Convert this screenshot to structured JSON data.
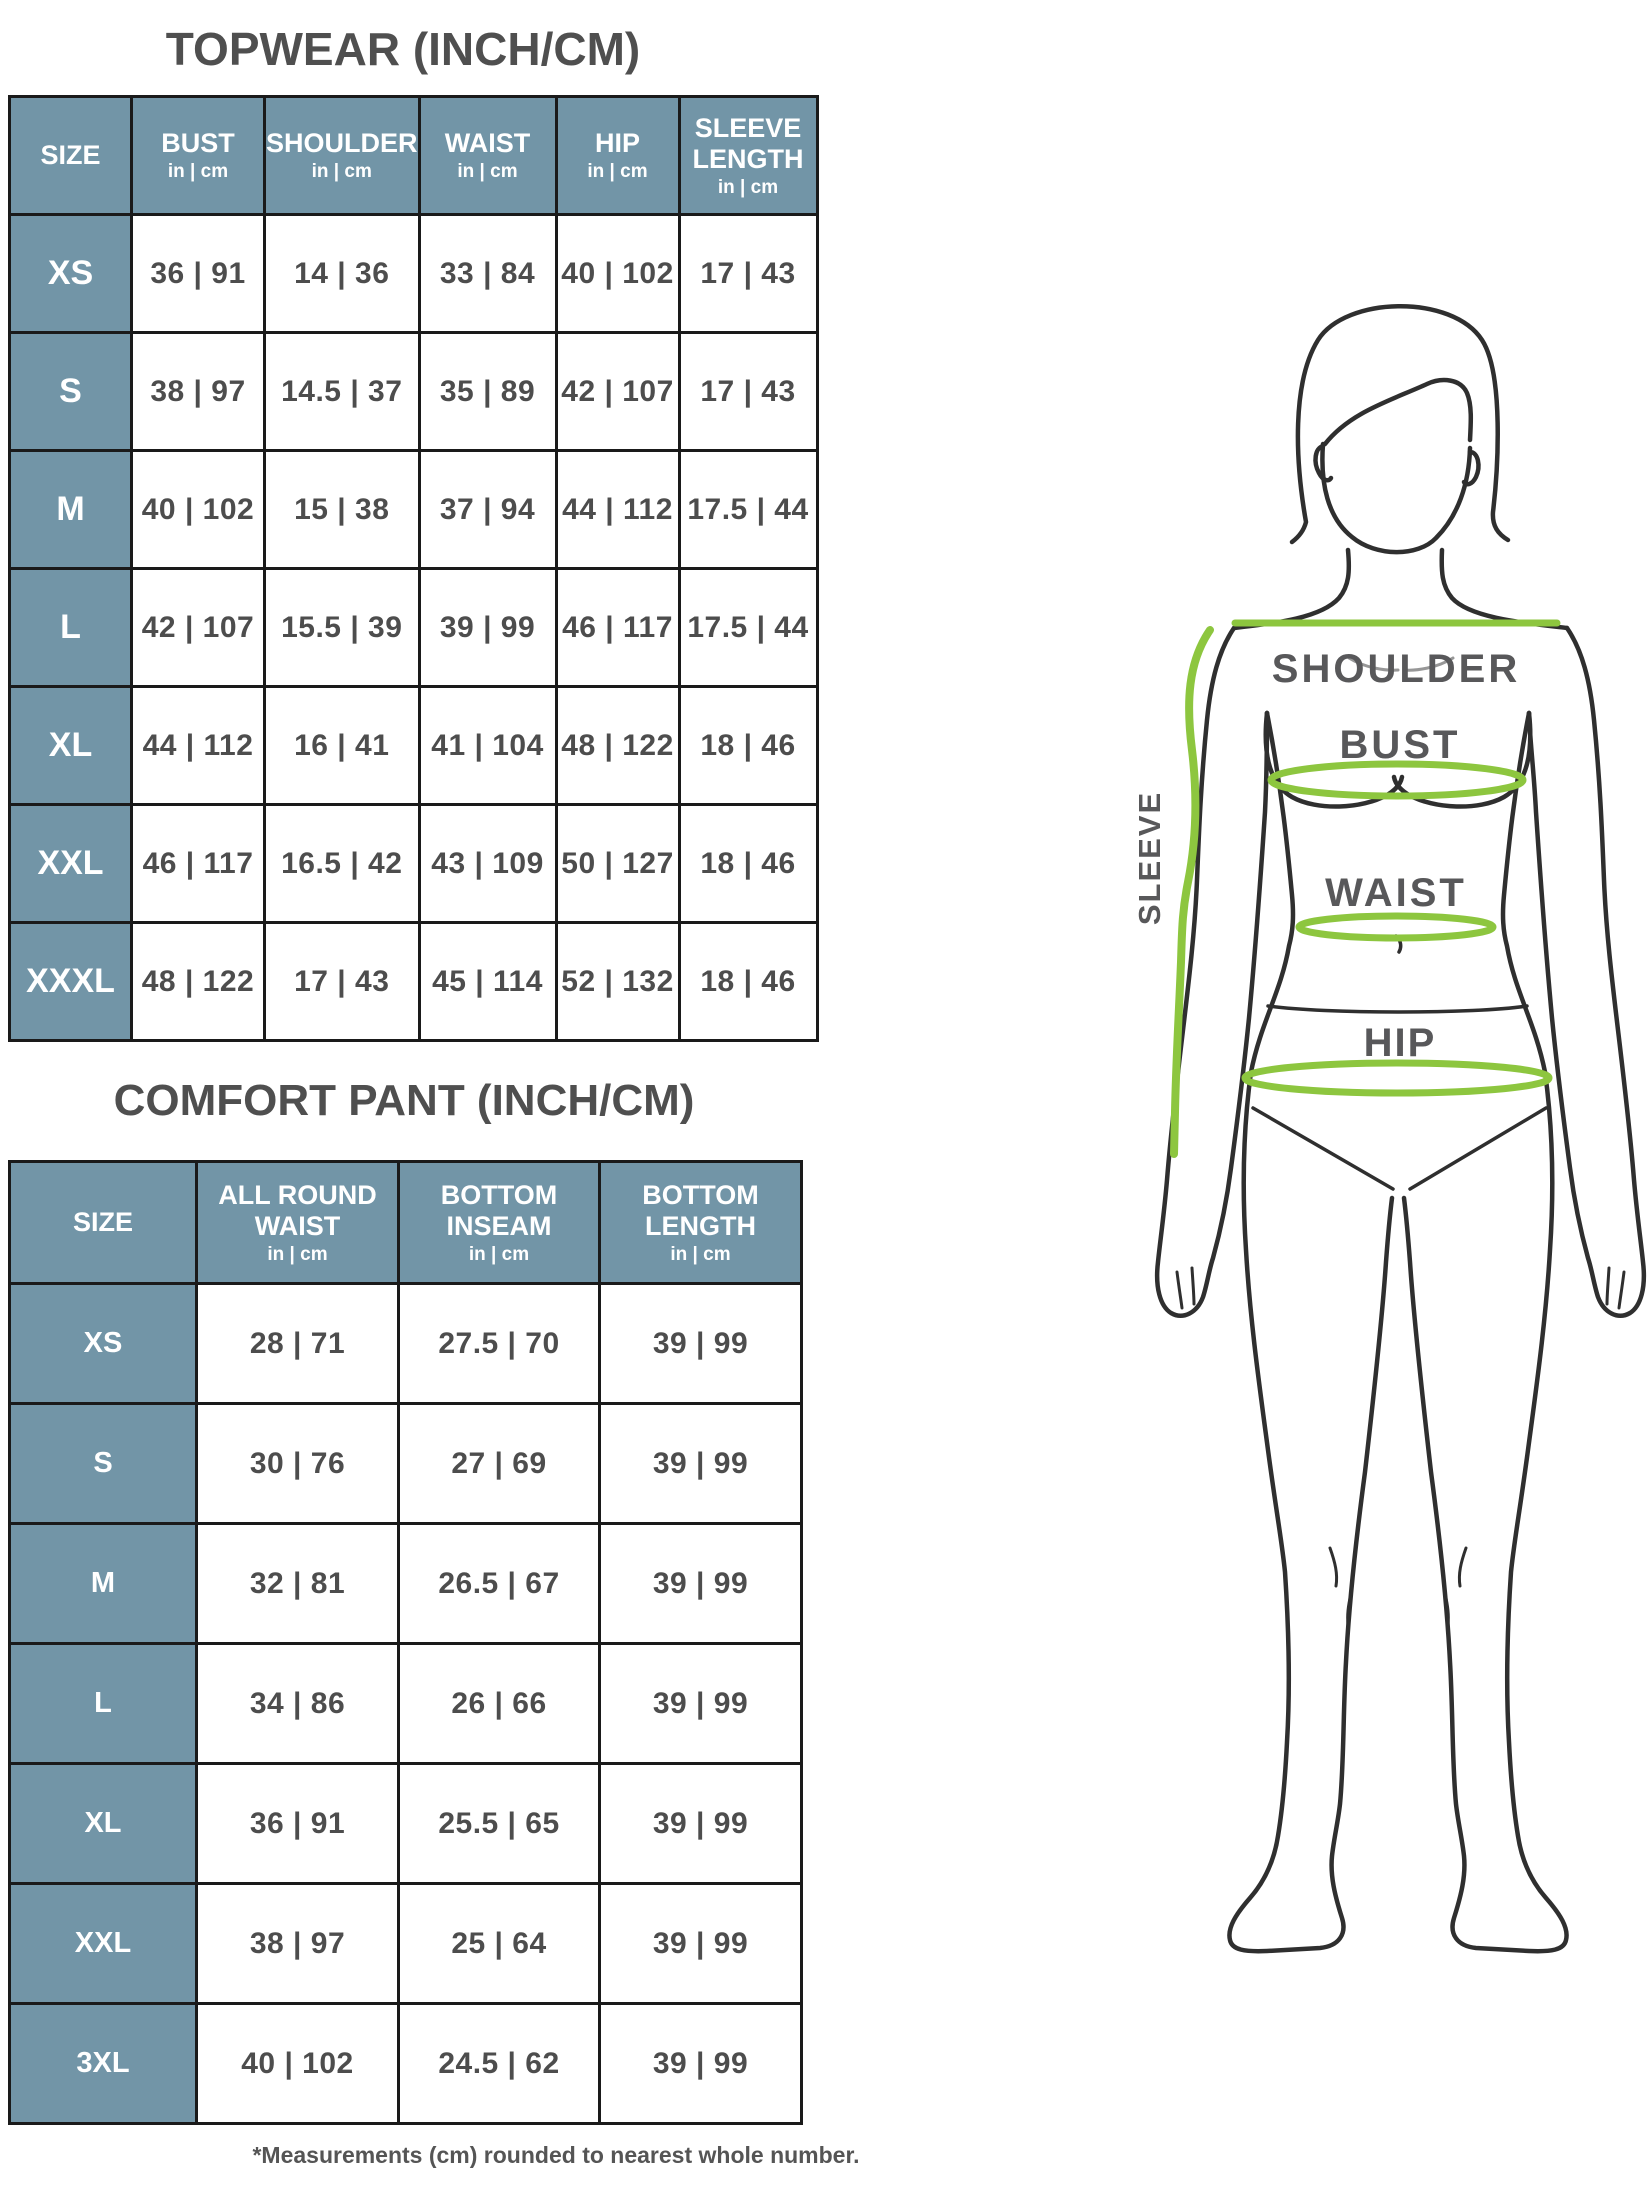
{
  "page": {
    "footer": "*Measurements (cm) rounded to nearest whole number."
  },
  "topwear": {
    "title": "TOPWEAR (INCH/CM)",
    "columns": [
      {
        "label": "SIZE",
        "sub": ""
      },
      {
        "label": "BUST",
        "sub": "in | cm"
      },
      {
        "label": "SHOULDER",
        "sub": "in | cm"
      },
      {
        "label": "WAIST",
        "sub": "in | cm"
      },
      {
        "label": "HIP",
        "sub": "in | cm"
      },
      {
        "label": "SLEEVE LENGTH",
        "sub": "in | cm"
      }
    ],
    "rows": [
      {
        "size": "XS",
        "values": [
          "36 | 91",
          "14 | 36",
          "33 | 84",
          "40 | 102",
          "17 | 43"
        ]
      },
      {
        "size": "S",
        "values": [
          "38 | 97",
          "14.5 | 37",
          "35 | 89",
          "42 | 107",
          "17 | 43"
        ]
      },
      {
        "size": "M",
        "values": [
          "40 | 102",
          "15 | 38",
          "37 | 94",
          "44 | 112",
          "17.5 | 44"
        ]
      },
      {
        "size": "L",
        "values": [
          "42 | 107",
          "15.5 | 39",
          "39 | 99",
          "46 | 117",
          "17.5 | 44"
        ]
      },
      {
        "size": "XL",
        "values": [
          "44 | 112",
          "16 | 41",
          "41 | 104",
          "48 | 122",
          "18 | 46"
        ]
      },
      {
        "size": "XXL",
        "values": [
          "46 | 117",
          "16.5 | 42",
          "43 | 109",
          "50 | 127",
          "18 | 46"
        ]
      },
      {
        "size": "XXXL",
        "values": [
          "48 | 122",
          "17 | 43",
          "45 | 114",
          "52 | 132",
          "18 | 46"
        ]
      }
    ]
  },
  "comfort_pant": {
    "title": "COMFORT PANT (INCH/CM)",
    "columns": [
      {
        "label": "SIZE",
        "sub": ""
      },
      {
        "label": "ALL ROUND WAIST",
        "sub": "in | cm"
      },
      {
        "label": "BOTTOM INSEAM",
        "sub": "in | cm"
      },
      {
        "label": "BOTTOM LENGTH",
        "sub": "in | cm"
      }
    ],
    "rows": [
      {
        "size": "XS",
        "values": [
          "28 | 71",
          "27.5 | 70",
          "39 | 99"
        ]
      },
      {
        "size": "S",
        "values": [
          "30 | 76",
          "27 | 69",
          "39 | 99"
        ]
      },
      {
        "size": "M",
        "values": [
          "32 | 81",
          "26.5 | 67",
          "39 | 99"
        ]
      },
      {
        "size": "L",
        "values": [
          "34 | 86",
          "26 | 66",
          "39 | 99"
        ]
      },
      {
        "size": "XL",
        "values": [
          "36 | 91",
          "25.5 | 65",
          "39 | 99"
        ]
      },
      {
        "size": "XXL",
        "values": [
          "38 | 97",
          "25 | 64",
          "39 | 99"
        ]
      },
      {
        "size": "3XL",
        "values": [
          "40 | 102",
          "24.5 | 62",
          "39 | 99"
        ]
      }
    ]
  },
  "figure": {
    "labels": {
      "shoulder": "SHOULDER",
      "bust": "BUST",
      "waist": "WAIST",
      "hip": "HIP",
      "sleeve": "SLEEVE"
    }
  },
  "colors": {
    "header_bg": "#7295a7",
    "grid_border": "#1a1a1a",
    "value_text": "#4d4d4d",
    "title_text": "#4f4f4f",
    "measure_green": "#8dc63f",
    "figure_line": "#2f2f2f"
  }
}
